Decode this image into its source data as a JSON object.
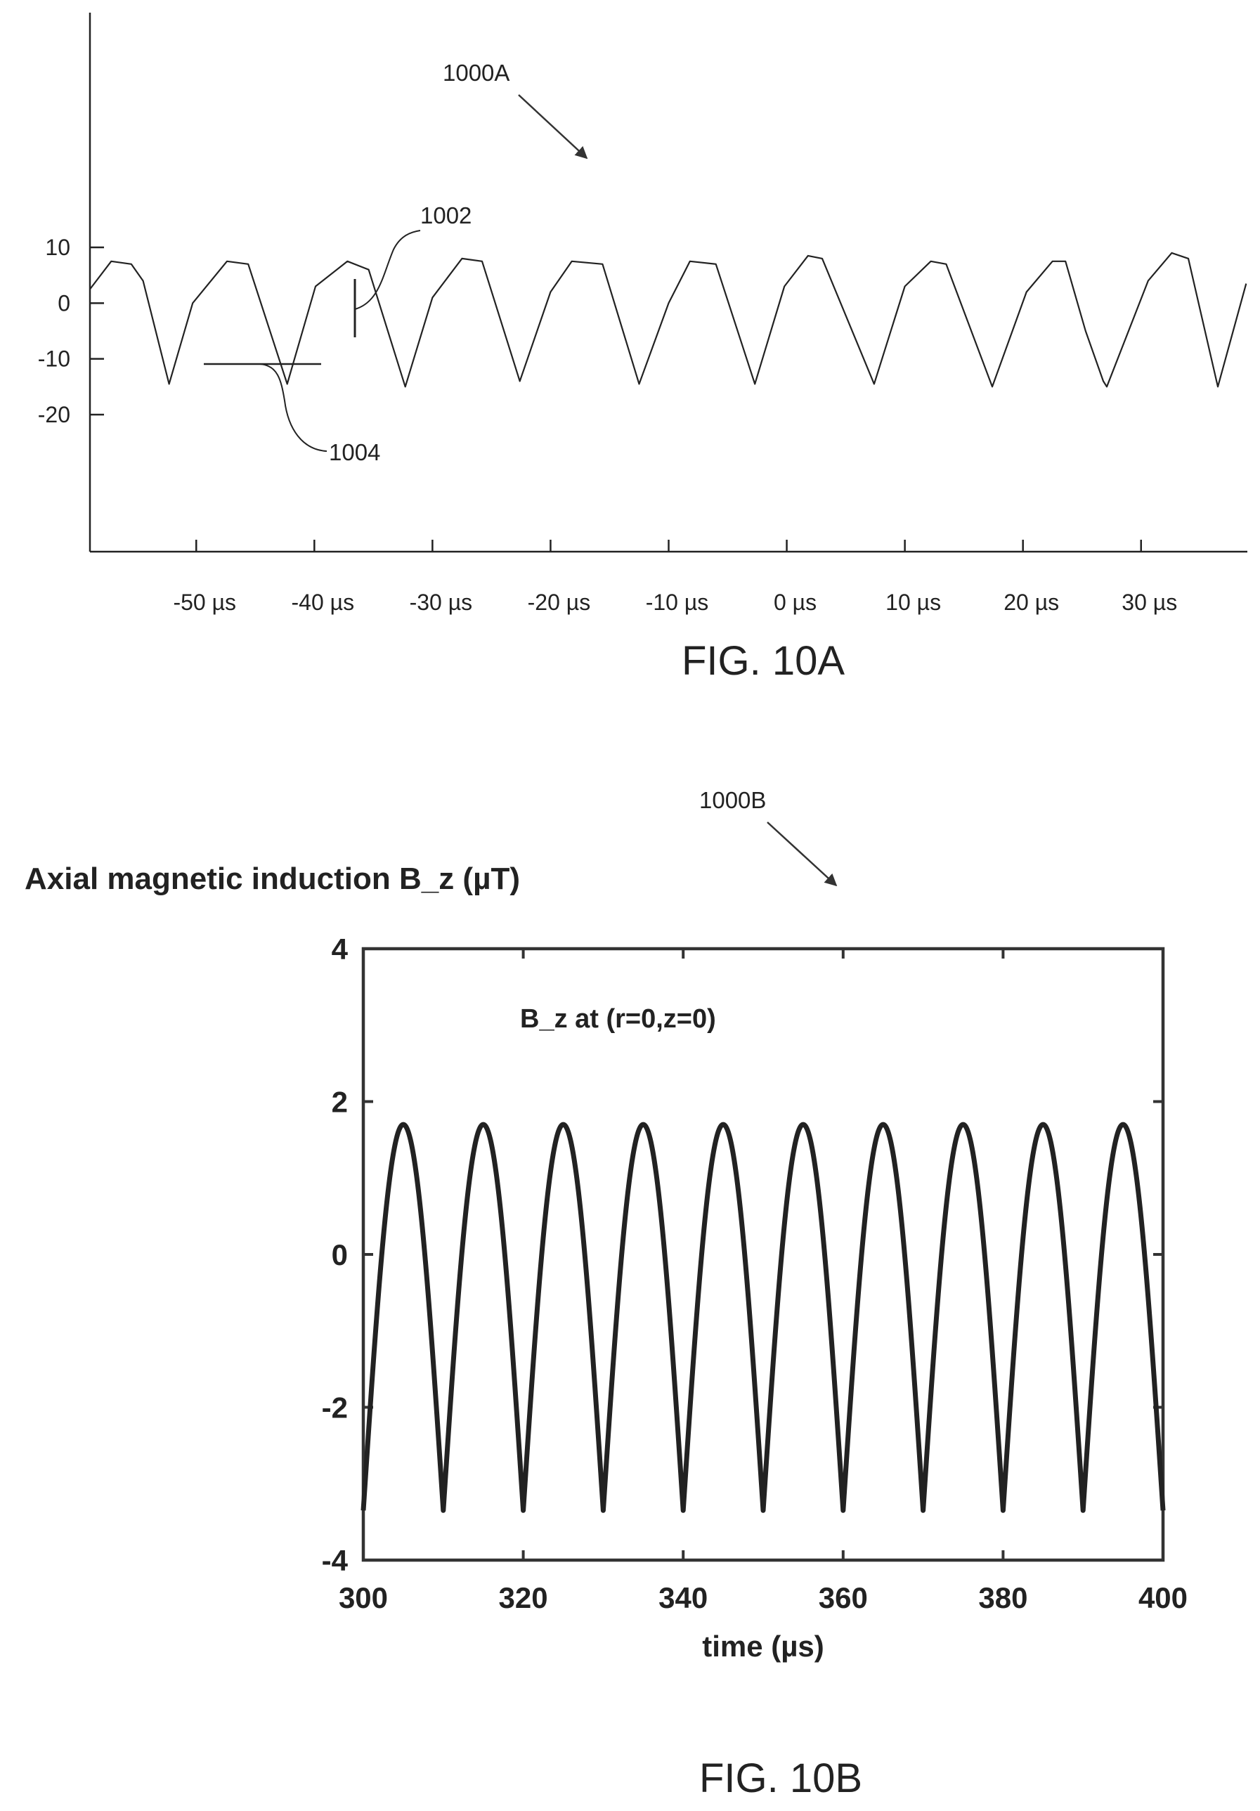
{
  "figures": [
    {
      "caption": "FIG. 10A",
      "reference_label": "1000A",
      "callouts": [
        "1002",
        "1004"
      ]
    },
    {
      "caption": "FIG. 10B",
      "reference_label": "1000B"
    }
  ],
  "chart_data": [
    {
      "type": "line",
      "title": "",
      "xlabel": "",
      "ylabel": "",
      "xlim": [
        -59,
        39
      ],
      "ylim": [
        -20,
        10
      ],
      "y_ticks": [
        "10",
        "0",
        "-10",
        "-20"
      ],
      "x_ticks": [
        "-50 µs",
        "-40 µs",
        "-30 µs",
        "-20 µs",
        "-10 µs",
        "0 µs",
        "10 µs",
        "20 µs",
        "30 µs"
      ],
      "series": [
        {
          "x": [
            -59,
            -57.2,
            -55.5,
            -54.5,
            -52.3,
            -50.3,
            -47.4,
            -45.6,
            -42.3,
            -39.9,
            -37.2,
            -35.4,
            -32.3,
            -30.0,
            -27.5,
            -25.8,
            -22.6,
            -20.0,
            -18.2,
            -15.6,
            -12.5,
            -10.0,
            -8.2,
            -6.0,
            -2.7,
            -0.2,
            1.8,
            3.0,
            7.4,
            10.0,
            12.2,
            13.5,
            17.4,
            20.3,
            22.5,
            23.6,
            25.3,
            26.8,
            27.1,
            30.6,
            32.6,
            34.0,
            36.5,
            38.9
          ],
          "y": [
            2.5,
            7.5,
            7,
            4,
            -14.5,
            0,
            7.5,
            7,
            -14.5,
            3,
            7.5,
            6,
            -15,
            1,
            8,
            7.5,
            -14,
            2,
            7.5,
            7,
            -14.5,
            0,
            7.5,
            7,
            -14.5,
            3,
            8.5,
            8,
            -14.5,
            3,
            7.5,
            7,
            -15,
            2,
            7.5,
            7.5,
            -5,
            -14,
            -15,
            4,
            9,
            8,
            -15,
            3.5
          ]
        }
      ]
    },
    {
      "type": "line",
      "title": "Axial magnetic induction B_z (µT)",
      "xlabel": "time (µs)",
      "ylabel": "",
      "annotation": "B_z at (r=0,z=0)",
      "xlim": [
        300,
        400
      ],
      "ylim": [
        -4,
        4
      ],
      "x_ticks": [
        "300",
        "320",
        "340",
        "360",
        "380",
        "400"
      ],
      "y_ticks": [
        "4",
        "2",
        "0",
        "-2",
        "-4"
      ],
      "series": [
        {
          "period_us": 10,
          "max": 1.7,
          "min": -3.35,
          "first_minimum_x": 310,
          "x": [
            300,
            304.5,
            310,
            314.5,
            320,
            324.5,
            330,
            334.5,
            340,
            344.5,
            350,
            354.5,
            360,
            364.5,
            370,
            374.5,
            380,
            384.5,
            390,
            394.5,
            400
          ],
          "y": [
            -3.35,
            1.7,
            -3.35,
            1.7,
            -3.35,
            1.7,
            -3.35,
            1.7,
            -3.35,
            1.7,
            -3.35,
            1.7,
            -3.35,
            1.7,
            -3.35,
            1.7,
            -3.35,
            1.7,
            -3.35,
            1.7,
            -3.35
          ]
        }
      ]
    }
  ]
}
